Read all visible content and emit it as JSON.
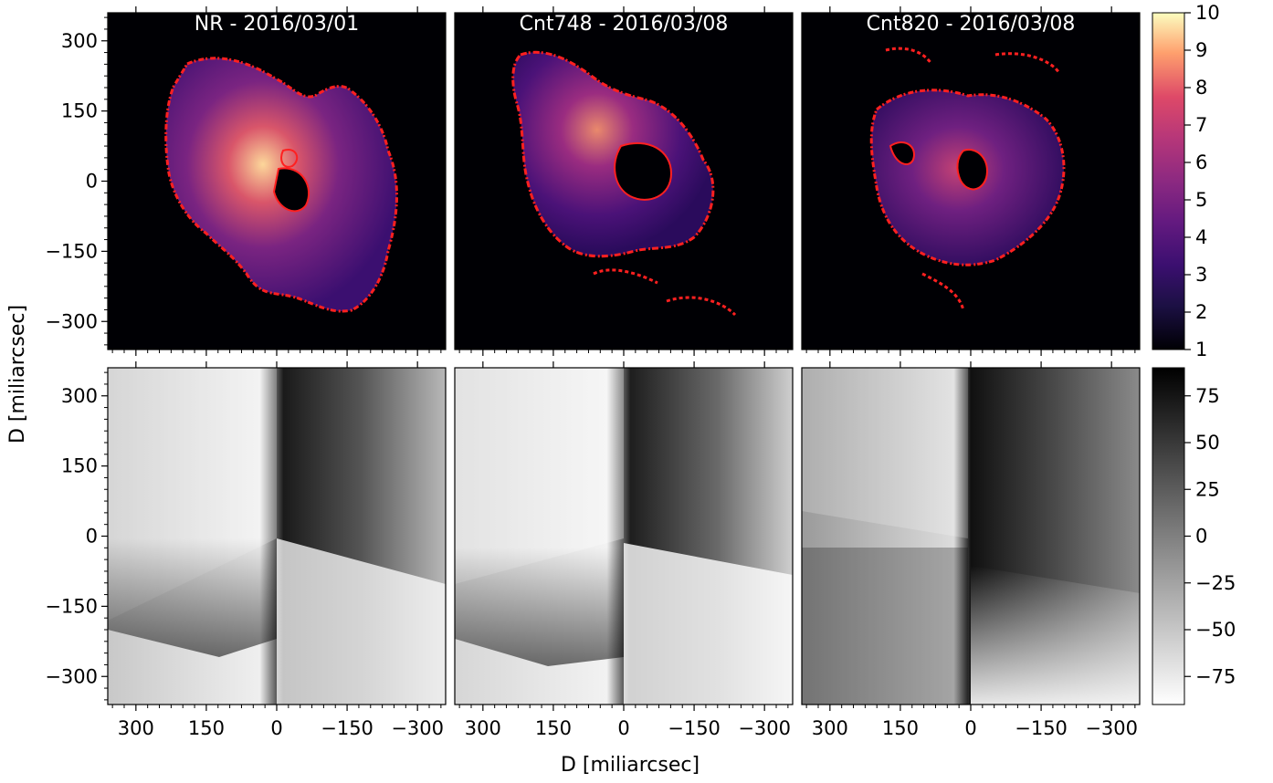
{
  "chart_data": [
    {
      "type": "heatmap",
      "panel": "top-left",
      "title": "NR - 2016/03/01",
      "colormap": "magma",
      "contour_color": "#ff2020",
      "xlim": [
        360,
        -360
      ],
      "ylim": [
        -360,
        360
      ],
      "grid": false
    },
    {
      "type": "heatmap",
      "panel": "top-middle",
      "title": "Cnt748 - 2016/03/08",
      "colormap": "magma",
      "contour_color": "#ff2020",
      "xlim": [
        360,
        -360
      ],
      "ylim": [
        -360,
        360
      ],
      "grid": false
    },
    {
      "type": "heatmap",
      "panel": "top-right",
      "title": "Cnt820 - 2016/03/08",
      "colormap": "magma",
      "contour_color": "#ff2020",
      "xlim": [
        360,
        -360
      ],
      "ylim": [
        -360,
        360
      ],
      "grid": false
    },
    {
      "type": "heatmap",
      "panel": "bottom-left",
      "colormap": "gray",
      "xlim": [
        360,
        -360
      ],
      "ylim": [
        -360,
        360
      ],
      "grid": false
    },
    {
      "type": "heatmap",
      "panel": "bottom-middle",
      "colormap": "gray",
      "xlim": [
        360,
        -360
      ],
      "ylim": [
        -360,
        360
      ],
      "grid": false
    },
    {
      "type": "heatmap",
      "panel": "bottom-right",
      "colormap": "gray",
      "xlim": [
        360,
        -360
      ],
      "ylim": [
        -360,
        360
      ],
      "grid": false
    }
  ],
  "axes": {
    "xlabel": "D [miliarcsec]",
    "ylabel": "D [miliarcsec]",
    "x_ticks": [
      300,
      150,
      0,
      -150,
      -300
    ],
    "x_tick_labels": [
      "300",
      "150",
      "0",
      "−150",
      "−300"
    ],
    "y_ticks": [
      300,
      150,
      0,
      -150,
      -300
    ],
    "y_tick_labels": [
      "300",
      "150",
      "0",
      "−150",
      "−300"
    ]
  },
  "colorbars": [
    {
      "name": "top",
      "colormap": "magma",
      "range": [
        1,
        10
      ],
      "ticks": [
        1,
        2,
        3,
        4,
        5,
        6,
        7,
        8,
        9,
        10
      ],
      "tick_labels": [
        "1",
        "2",
        "3",
        "4",
        "5",
        "6",
        "7",
        "8",
        "9",
        "10"
      ]
    },
    {
      "name": "bottom",
      "colormap": "gray_r",
      "range": [
        -90,
        90
      ],
      "ticks": [
        75,
        50,
        25,
        0,
        -25,
        -50,
        -75
      ],
      "tick_labels": [
        "75",
        "50",
        "25",
        "0",
        "−25",
        "−50",
        "−75"
      ]
    }
  ],
  "colors": {
    "contour": "#ff2020",
    "background_dark": "#000004",
    "title_text": "#ffffff"
  }
}
